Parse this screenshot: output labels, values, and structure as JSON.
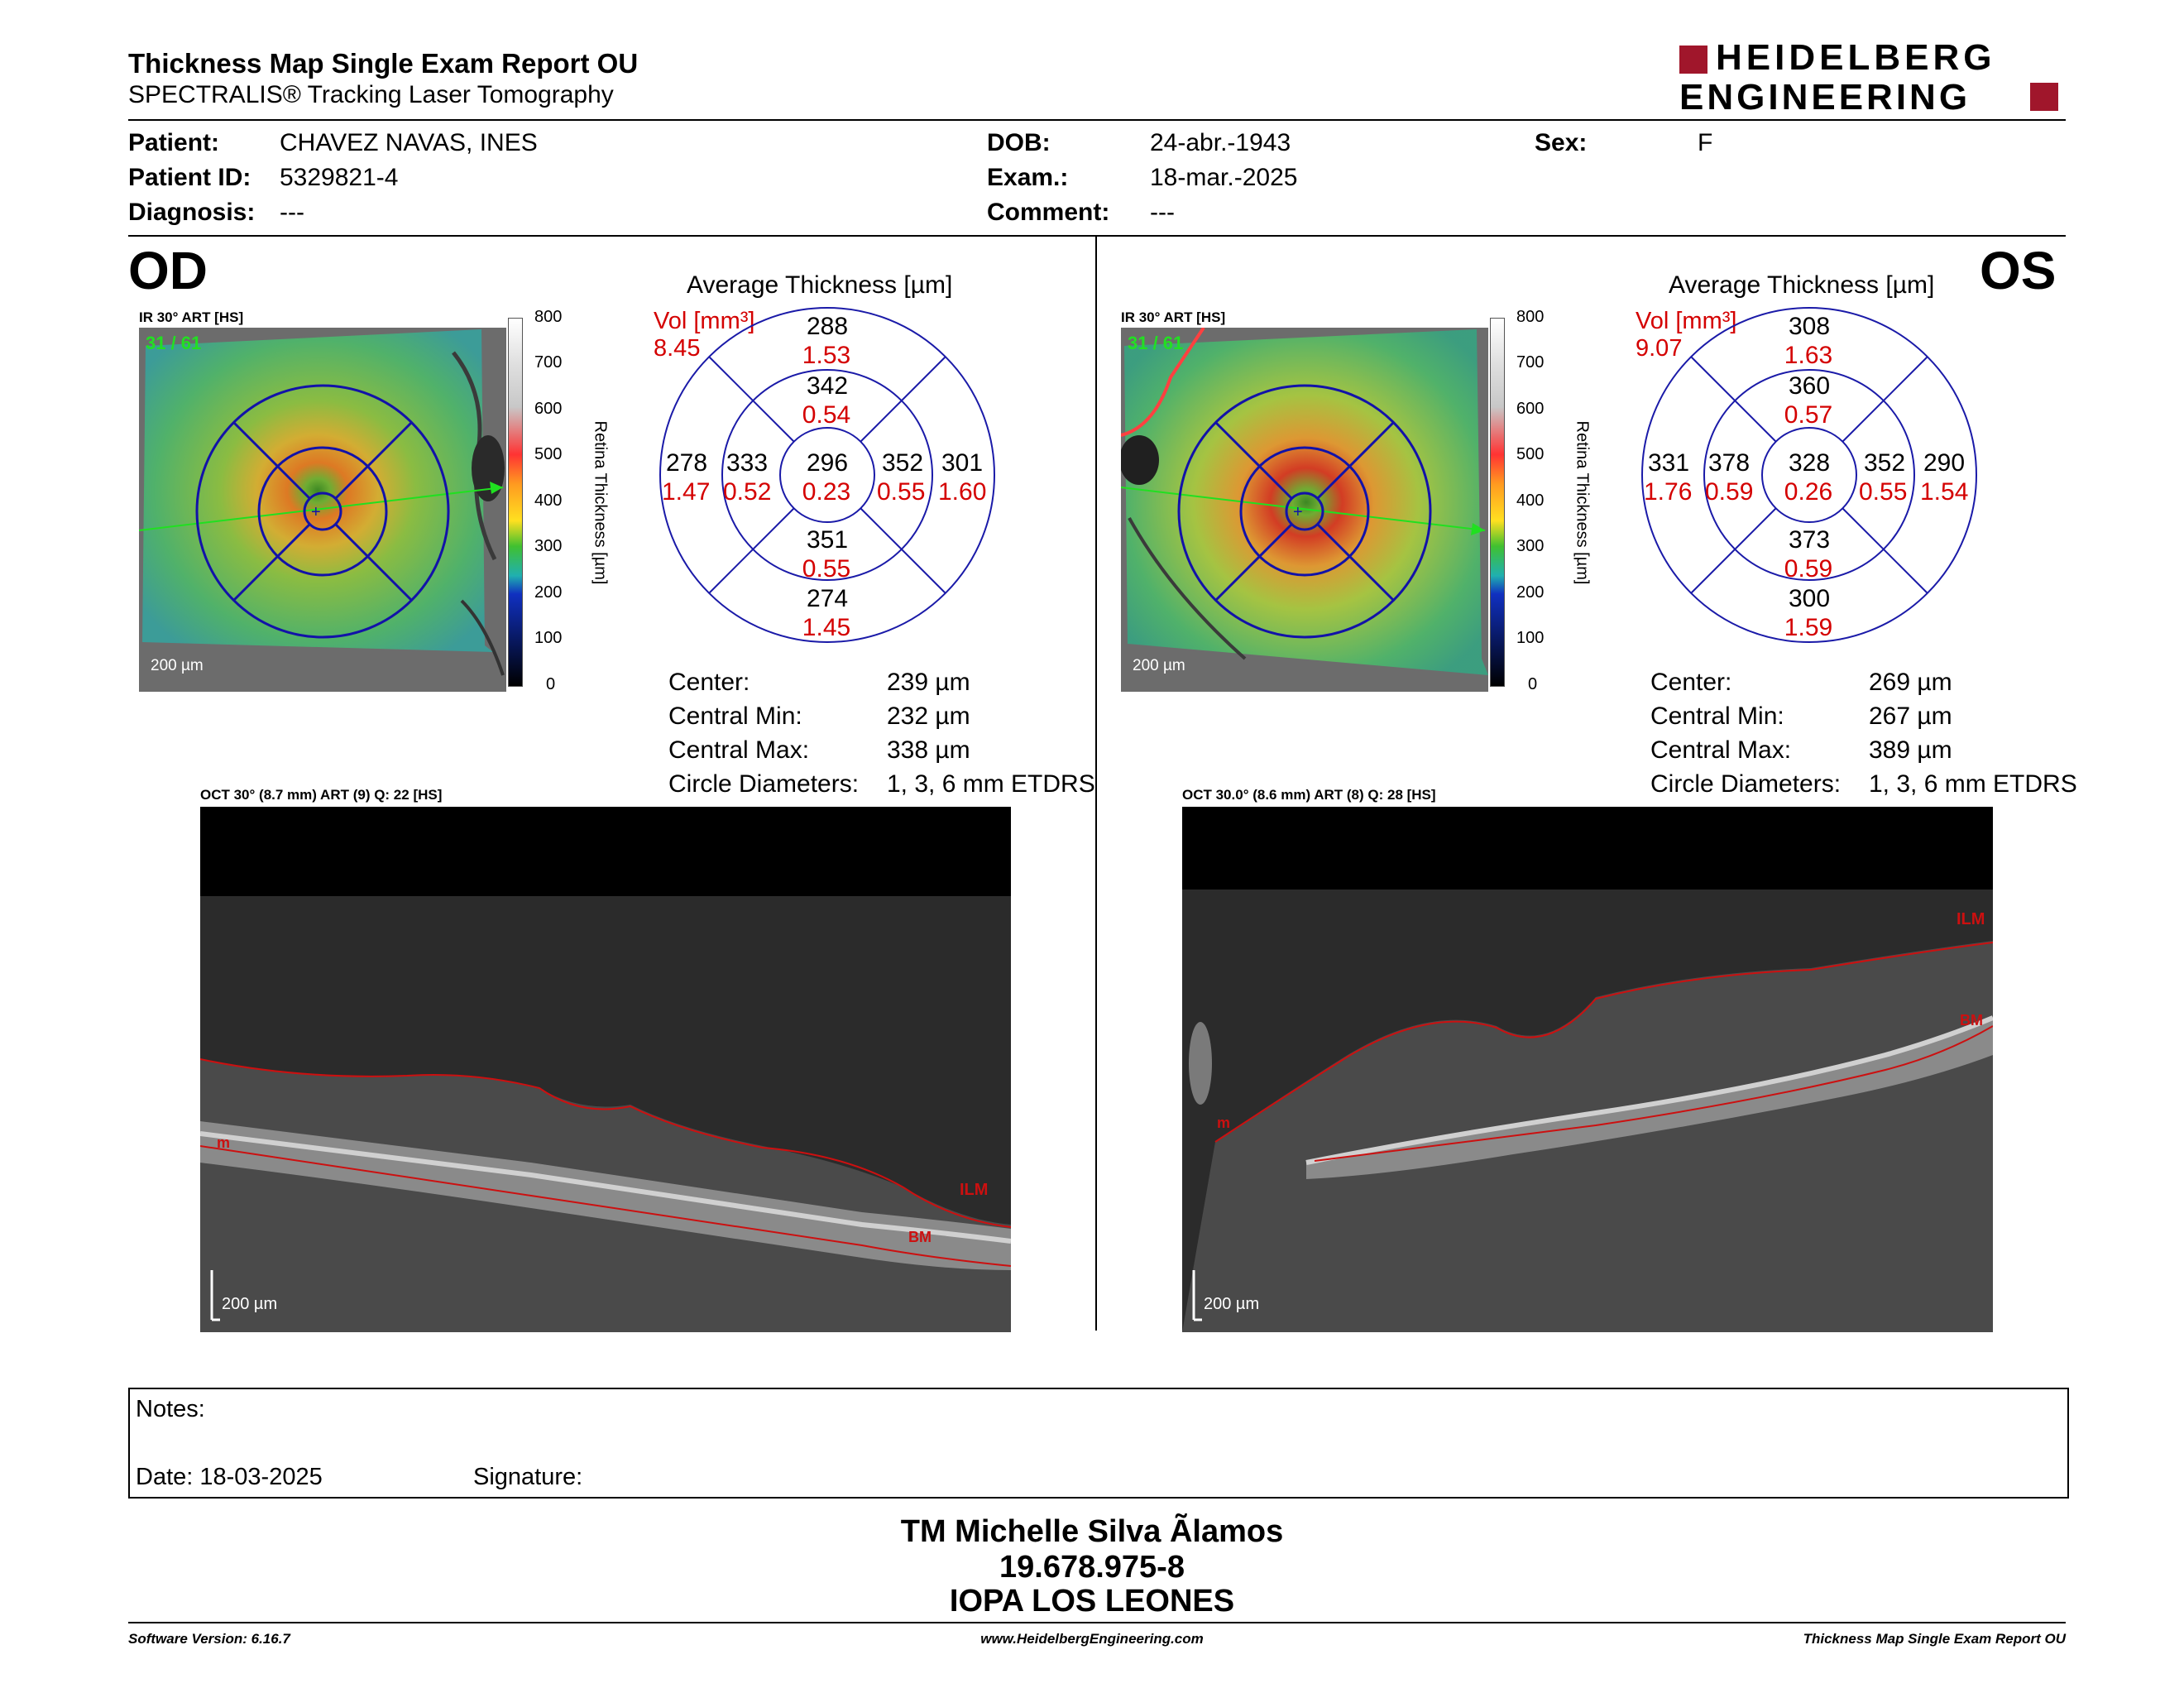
{
  "header": {
    "title": "Thickness Map Single Exam Report OU",
    "subtitle": "SPECTRALIS® Tracking Laser Tomography",
    "logo": {
      "line1": "HEIDELBERG",
      "line2": "ENGINEERING",
      "color": "#a0162b"
    }
  },
  "patient": {
    "patient_label": "Patient:",
    "patient_value": "CHAVEZ NAVAS, INES",
    "id_label": "Patient ID:",
    "id_value": "5329821-4",
    "diag_label": "Diagnosis:",
    "diag_value": "---",
    "dob_label": "DOB:",
    "dob_value": "24-abr.-1943",
    "exam_label": "Exam.:",
    "exam_value": "18-mar.-2025",
    "comment_label": "Comment:",
    "comment_value": "---",
    "sex_label": "Sex:",
    "sex_value": "F"
  },
  "od": {
    "eye": "OD",
    "ir_label": "IR 30° ART [HS]",
    "ir_counter": "31 / 61",
    "scale_bar": "200 µm",
    "colorbar_ticks": [
      "800",
      "700",
      "600",
      "500",
      "400",
      "300",
      "200",
      "100",
      "0"
    ],
    "colorbar_title": "Retina  Thickness [µm]",
    "grid_title": "Average Thickness [µm]",
    "vol_label": "Vol [mm³]",
    "vol_value": "8.45",
    "sectors": {
      "outer_superior": {
        "t": "288",
        "v": "1.53"
      },
      "inner_superior": {
        "t": "342",
        "v": "0.54"
      },
      "outer_nasal_left": {
        "t": "278",
        "v": "1.47"
      },
      "inner_left": {
        "t": "333",
        "v": "0.52"
      },
      "center": {
        "t": "296",
        "v": "0.23"
      },
      "inner_right": {
        "t": "352",
        "v": "0.55"
      },
      "outer_right": {
        "t": "301",
        "v": "1.60"
      },
      "inner_inferior": {
        "t": "351",
        "v": "0.55"
      },
      "outer_inferior": {
        "t": "274",
        "v": "1.45"
      }
    },
    "stats": [
      {
        "label": "Center:",
        "value": "239 µm"
      },
      {
        "label": "Central Min:",
        "value": "232 µm"
      },
      {
        "label": "Central Max:",
        "value": "338 µm"
      },
      {
        "label": "Circle Diameters:",
        "value": "1, 3, 6 mm ETDRS"
      }
    ],
    "oct_label": "OCT 30° (8.7 mm) ART (9) Q: 22 [HS]",
    "oct_scale": "200 µm",
    "markers": {
      "ilm": "ILM",
      "bm": "BM",
      "m": "m"
    }
  },
  "os": {
    "eye": "OS",
    "ir_label": "IR 30° ART [HS]",
    "ir_counter": "31 / 61",
    "scale_bar": "200 µm",
    "colorbar_ticks": [
      "800",
      "700",
      "600",
      "500",
      "400",
      "300",
      "200",
      "100",
      "0"
    ],
    "colorbar_title": "Retina  Thickness [µm]",
    "grid_title": "Average Thickness [µm]",
    "vol_label": "Vol [mm³]",
    "vol_value": "9.07",
    "sectors": {
      "outer_superior": {
        "t": "308",
        "v": "1.63"
      },
      "inner_superior": {
        "t": "360",
        "v": "0.57"
      },
      "outer_nasal_left": {
        "t": "331",
        "v": "1.76"
      },
      "inner_left": {
        "t": "378",
        "v": "0.59"
      },
      "center": {
        "t": "328",
        "v": "0.26"
      },
      "inner_right": {
        "t": "352",
        "v": "0.55"
      },
      "outer_right": {
        "t": "290",
        "v": "1.54"
      },
      "inner_inferior": {
        "t": "373",
        "v": "0.59"
      },
      "outer_inferior": {
        "t": "300",
        "v": "1.59"
      }
    },
    "stats": [
      {
        "label": "Center:",
        "value": "269 µm"
      },
      {
        "label": "Central Min:",
        "value": "267 µm"
      },
      {
        "label": "Central Max:",
        "value": "389 µm"
      },
      {
        "label": "Circle Diameters:",
        "value": "1, 3, 6 mm ETDRS"
      }
    ],
    "oct_label": "OCT 30.0° (8.6 mm) ART (8) Q: 28 [HS]",
    "oct_scale": "200 µm",
    "markers": {
      "ilm": "ILM",
      "bm": "BM",
      "m": "m"
    }
  },
  "notes": {
    "label": "Notes:",
    "date": "Date: 18-03-2025",
    "signature": "Signature:"
  },
  "signer": {
    "name": "TM Michelle Silva Ãlamos",
    "rut": "19.678.975-8",
    "clinic": "IOPA LOS LEONES"
  },
  "footer": {
    "version": "Software Version: 6.16.7",
    "website": "www.HeidelbergEngineering.com",
    "report": "Thickness Map Single Exam Report OU"
  },
  "colors": {
    "accent_red": "#d40000",
    "grid_blue": "#1a1aa8",
    "brand": "#a0162b"
  }
}
